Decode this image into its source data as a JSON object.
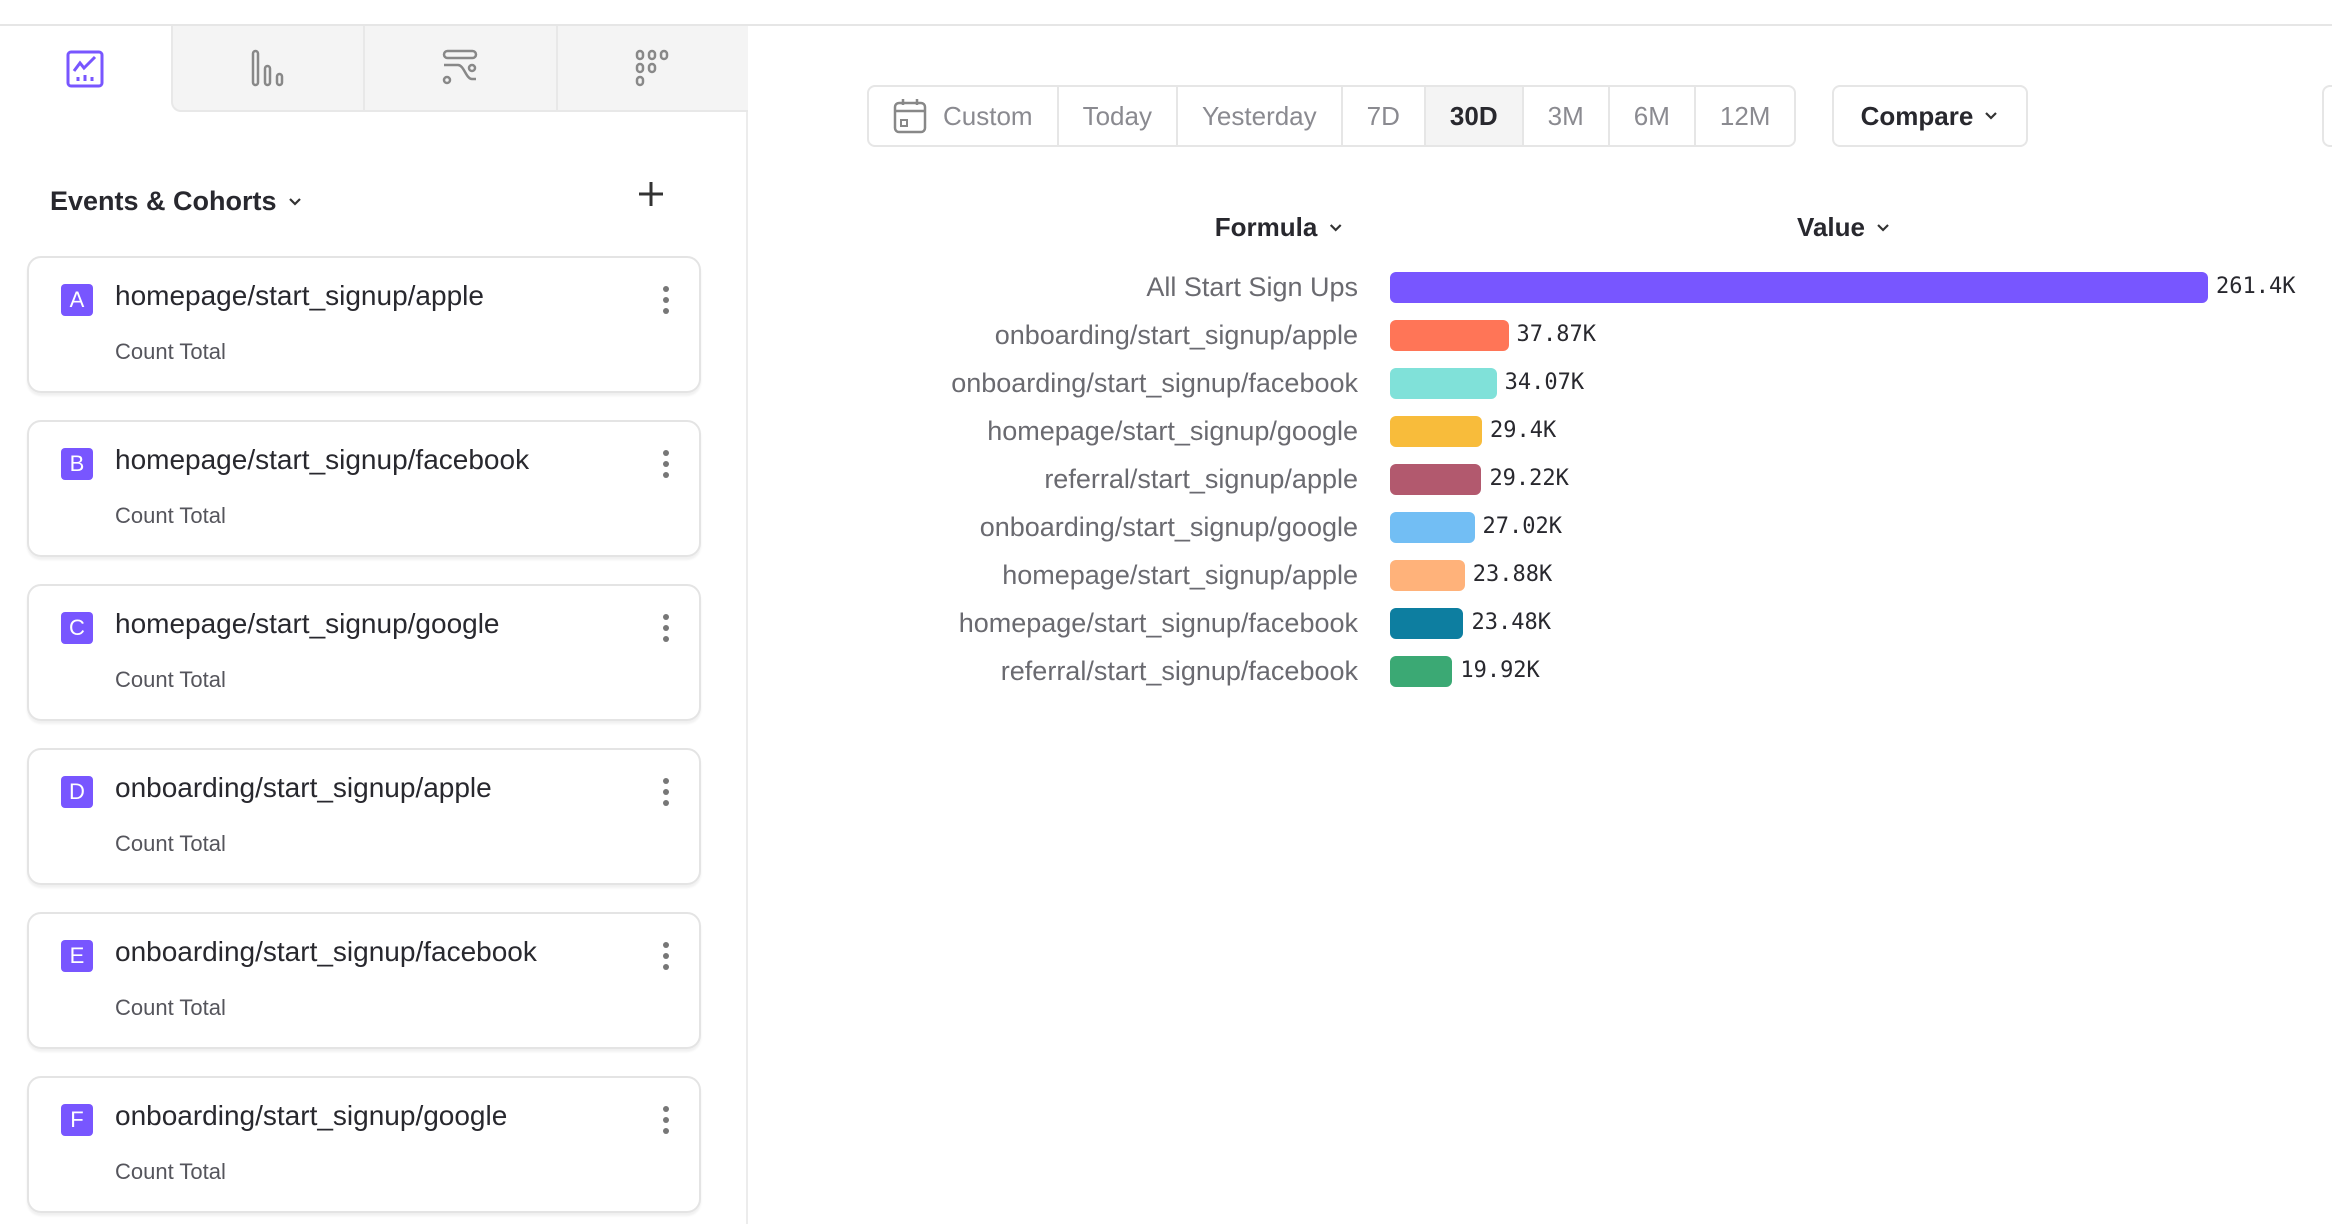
{
  "sidebar": {
    "tabs": [
      {
        "icon": "insights-chart-icon",
        "active": true
      },
      {
        "icon": "funnels-bar-icon",
        "active": false
      },
      {
        "icon": "flows-icon",
        "active": false
      },
      {
        "icon": "retention-dots-icon",
        "active": false
      }
    ],
    "header": "Events & Cohorts",
    "cards": [
      {
        "letter": "A",
        "title": "homepage/start_signup/apple",
        "metric": "Count Total"
      },
      {
        "letter": "B",
        "title": "homepage/start_signup/facebook",
        "metric": "Count Total"
      },
      {
        "letter": "C",
        "title": "homepage/start_signup/google",
        "metric": "Count Total"
      },
      {
        "letter": "D",
        "title": "onboarding/start_signup/apple",
        "metric": "Count Total"
      },
      {
        "letter": "E",
        "title": "onboarding/start_signup/facebook",
        "metric": "Count Total"
      },
      {
        "letter": "F",
        "title": "onboarding/start_signup/google",
        "metric": "Count Total"
      }
    ]
  },
  "toolbar": {
    "ranges": [
      "Custom",
      "Today",
      "Yesterday",
      "7D",
      "30D",
      "3M",
      "6M",
      "12M"
    ],
    "selected": "30D",
    "compare": "Compare"
  },
  "table": {
    "formula_header": "Formula",
    "value_header": "Value"
  },
  "accent": "#7856ff",
  "chart_data": {
    "type": "bar",
    "orientation": "horizontal",
    "categories": [
      "All Start Sign Ups",
      "onboarding/start_signup/apple",
      "onboarding/start_signup/facebook",
      "homepage/start_signup/google",
      "referral/start_signup/apple",
      "onboarding/start_signup/google",
      "homepage/start_signup/apple",
      "homepage/start_signup/facebook",
      "referral/start_signup/facebook"
    ],
    "values": [
      261400,
      37870,
      34070,
      29400,
      29220,
      27020,
      23880,
      23480,
      19920
    ],
    "labels": [
      "261.4K",
      "37.87K",
      "34.07K",
      "29.4K",
      "29.22K",
      "27.02K",
      "23.88K",
      "23.48K",
      "19.92K"
    ],
    "colors": [
      "#7856ff",
      "#ff7557",
      "#80e1d9",
      "#f8bc3b",
      "#b2596e",
      "#72bef4",
      "#ffb27a",
      "#0d7ea0",
      "#3ba974"
    ]
  }
}
